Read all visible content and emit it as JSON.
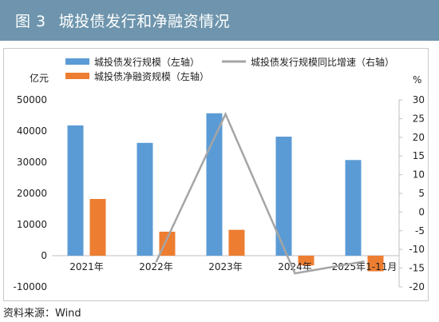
{
  "header": {
    "figure_number": "图 3",
    "title": "城投债发行和净融资情况"
  },
  "source": "资料来源：Wind",
  "colors": {
    "header_bg": "#6e95ad",
    "issuance": "#5b9bd5",
    "net_financing": "#ed7d31",
    "yoy_line": "#a5a5a5"
  },
  "chart_data": {
    "type": "bar",
    "categories": [
      "2021年",
      "2022年",
      "2023年",
      "2024年",
      "2025年1-11月"
    ],
    "series": [
      {
        "name": "城投债发行规模（左轴）",
        "type": "bar",
        "axis": "left",
        "values": [
          41800,
          36200,
          45700,
          38200,
          30700
        ]
      },
      {
        "name": "城投债净融资规模（左轴）",
        "type": "bar",
        "axis": "left",
        "values": [
          18200,
          7700,
          8300,
          -3100,
          -5000
        ]
      },
      {
        "name": "城投债发行规模同比增速（右轴）",
        "type": "line",
        "axis": "right",
        "values": [
          null,
          -13.4,
          26.2,
          -16.4,
          -13.2
        ]
      }
    ],
    "left_axis": {
      "label": "亿元",
      "min": -10000,
      "max": 50000,
      "ticks": [
        -10000,
        0,
        10000,
        20000,
        30000,
        40000,
        50000
      ]
    },
    "right_axis": {
      "label": "%",
      "min": -20,
      "max": 30,
      "ticks": [
        -20,
        -15,
        -10,
        -5,
        0,
        5,
        10,
        15,
        20,
        25,
        30
      ]
    },
    "legend_position": "top",
    "grid": false
  }
}
